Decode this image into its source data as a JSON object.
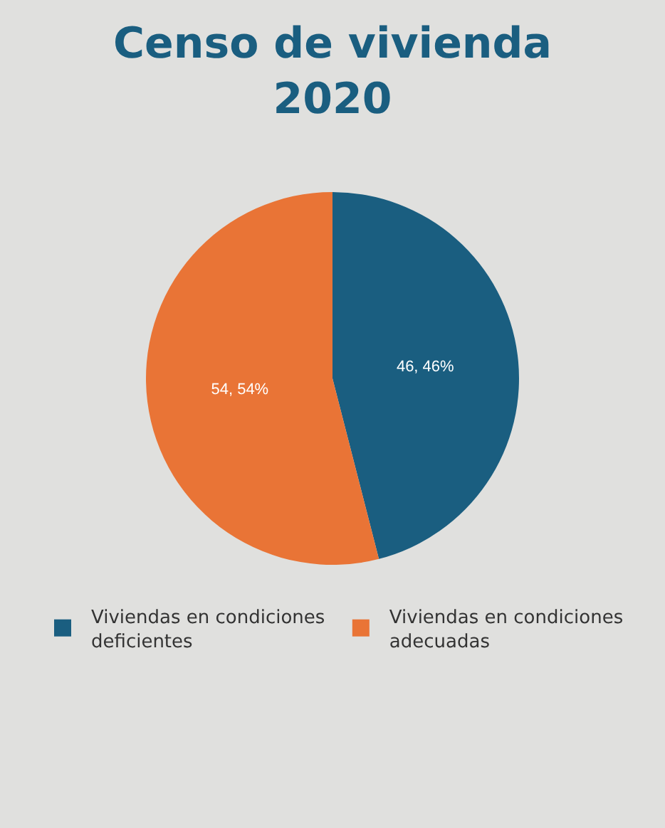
{
  "chart_data": {
    "type": "pie",
    "title": "Censo de vivienda 2020",
    "categories": [
      "Viviendas en condiciones deficientes",
      "Viviendas en condiciones adecuadas"
    ],
    "values": [
      46,
      54
    ],
    "value_labels": [
      "46, 46%",
      "54, 54%"
    ],
    "colors": [
      "#1a5e80",
      "#e97436"
    ],
    "legend": "bottom"
  }
}
